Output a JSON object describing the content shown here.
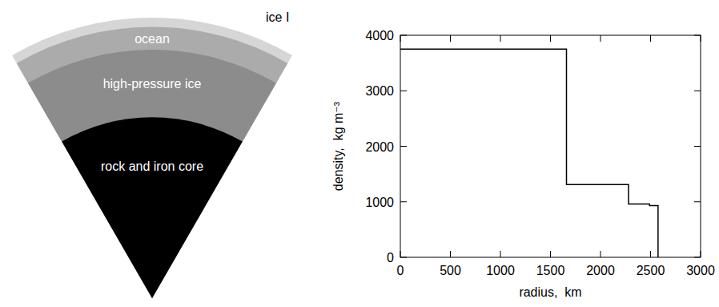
{
  "chart_data": {
    "type": "line",
    "x": [
      0,
      1660,
      1660,
      2280,
      2280,
      2490,
      2490,
      2575,
      2575
    ],
    "values": [
      3750,
      3750,
      1310,
      1310,
      960,
      960,
      930,
      930,
      0
    ],
    "xlabel": "radius,  km",
    "ylabel": "density,  kg m⁻³",
    "xlim": [
      0,
      3000
    ],
    "xticks": [
      0,
      500,
      1000,
      1500,
      2000,
      2500,
      3000
    ],
    "ylim": [
      0,
      4000
    ],
    "yticks": [
      0,
      1000,
      2000,
      3000,
      4000
    ],
    "color": "#000000",
    "line_style": "solid"
  },
  "diagram": {
    "layers": [
      {
        "label": "rock and iron core"
      },
      {
        "label": "high-pressure ice"
      },
      {
        "label": "ocean"
      },
      {
        "label": "ice I"
      }
    ]
  }
}
